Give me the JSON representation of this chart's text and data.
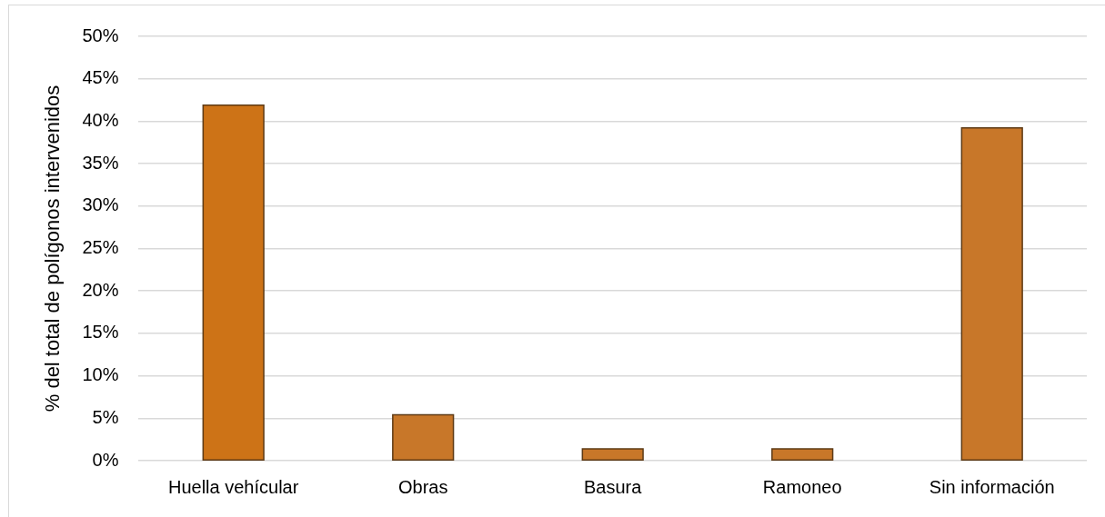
{
  "chart_data": {
    "type": "bar",
    "ylabel": "% del total de polígonos intervenidos",
    "categories": [
      "Huella vehícular",
      "Obras",
      "Basura",
      "Ramoneo",
      "Sin información"
    ],
    "values": [
      41.9,
      5.4,
      1.4,
      1.4,
      39.2
    ],
    "colors": [
      "#cd7317",
      "#c87729",
      "#c87729",
      "#c87729",
      "#c87729"
    ],
    "ylim": [
      0,
      50
    ],
    "yticks": [
      {
        "value": 0,
        "label": "0%"
      },
      {
        "value": 5,
        "label": "5%"
      },
      {
        "value": 10,
        "label": "10%"
      },
      {
        "value": 15,
        "label": "15%"
      },
      {
        "value": 20,
        "label": "20%"
      },
      {
        "value": 25,
        "label": "25%"
      },
      {
        "value": 30,
        "label": "30%"
      },
      {
        "value": 35,
        "label": "35%"
      },
      {
        "value": 40,
        "label": "40%"
      },
      {
        "value": 45,
        "label": "45%"
      },
      {
        "value": 50,
        "label": "50%"
      }
    ],
    "grid": "y",
    "legend": false
  }
}
